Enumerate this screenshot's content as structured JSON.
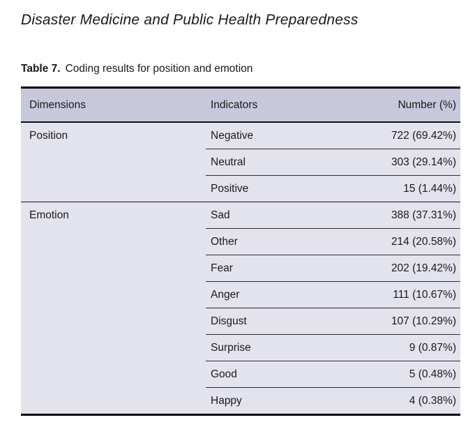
{
  "page": {
    "journal_title": "Disaster Medicine and Public Health Preparedness",
    "caption_label": "Table 7.",
    "caption_text": "Coding results for position and emotion"
  },
  "colors": {
    "header_bg": "#c8c8dc",
    "body_bg": "#e3e3ed",
    "thick_border": "#000000",
    "thin_border": "#2e2e2e"
  },
  "table": {
    "columns": [
      "Dimensions",
      "Indicators",
      "Number (%)"
    ],
    "groups": [
      {
        "dimension": "Position",
        "rows": [
          {
            "indicator": "Negative",
            "number": "722 (69.42%)"
          },
          {
            "indicator": "Neutral",
            "number": "303 (29.14%)"
          },
          {
            "indicator": "Positive",
            "number": "15 (1.44%)"
          }
        ]
      },
      {
        "dimension": "Emotion",
        "rows": [
          {
            "indicator": "Sad",
            "number": "388 (37.31%)"
          },
          {
            "indicator": "Other",
            "number": "214 (20.58%)"
          },
          {
            "indicator": "Fear",
            "number": "202 (19.42%)"
          },
          {
            "indicator": "Anger",
            "number": "111 (10.67%)"
          },
          {
            "indicator": "Disgust",
            "number": "107 (10.29%)"
          },
          {
            "indicator": "Surprise",
            "number": "9 (0.87%)"
          },
          {
            "indicator": "Good",
            "number": "5 (0.48%)"
          },
          {
            "indicator": "Happy",
            "number": "4 (0.38%)"
          }
        ]
      }
    ]
  }
}
